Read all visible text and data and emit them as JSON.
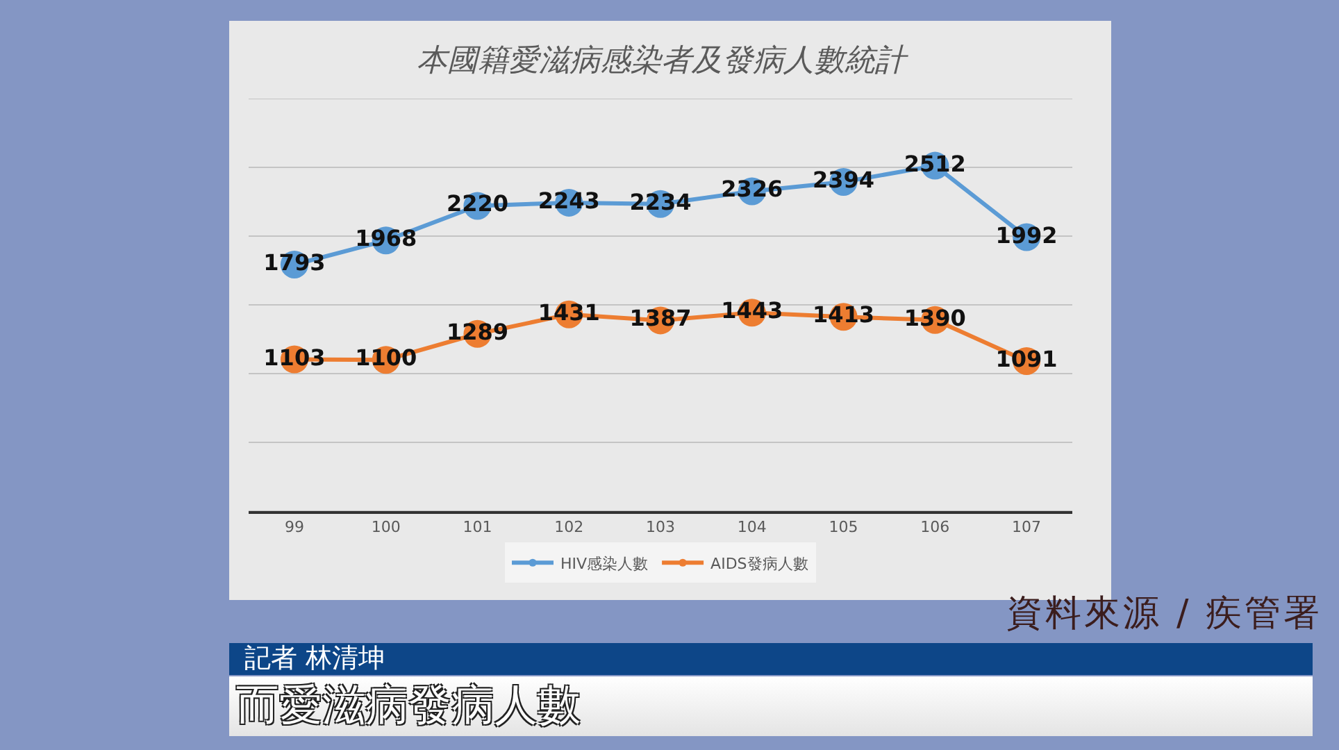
{
  "chart_data": {
    "type": "line",
    "title": "本國籍愛滋病感染者及發病人數統計",
    "categories": [
      "99",
      "100",
      "101",
      "102",
      "103",
      "104",
      "105",
      "106",
      "107"
    ],
    "series": [
      {
        "name": "HIV感染人數",
        "color": "#5b9bd5",
        "values": [
          1793,
          1968,
          2220,
          2243,
          2234,
          2326,
          2394,
          2512,
          1992
        ]
      },
      {
        "name": "AIDS發病人數",
        "color": "#ed7d31",
        "values": [
          1103,
          1100,
          1289,
          1431,
          1387,
          1443,
          1413,
          1390,
          1091
        ]
      }
    ],
    "ylim": [
      0,
      3000
    ],
    "yticks": [
      {
        "value": 0,
        "label": null
      },
      {
        "value": 500,
        "label": null
      },
      {
        "value": 1000,
        "label": null
      },
      {
        "value": 1500,
        "label": null
      },
      {
        "value": 2000,
        "label": null
      },
      {
        "value": 2500,
        "label": null
      },
      {
        "value": 3000,
        "label": null
      }
    ],
    "tick_labels": "x",
    "grid": "y",
    "legend": "bottom",
    "marker": "circle",
    "line_style": "solid",
    "data_labels": true,
    "annotations": [
      "資料來源 / 疾管署",
      "記者 林清坤",
      "而愛滋病發病人數"
    ]
  }
}
